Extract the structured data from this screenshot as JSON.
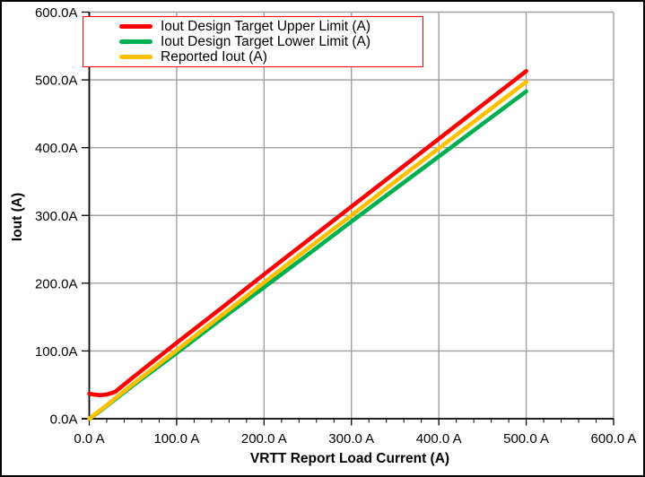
{
  "chart_data": {
    "type": "line",
    "title": "",
    "xlabel": "VRTT Report Load Current (A)",
    "ylabel": "Iout (A)",
    "xlim": [
      0,
      600
    ],
    "ylim": [
      0,
      600
    ],
    "grid": true,
    "gridline_color": "#A0A0A0",
    "axis_color": "#000000",
    "background_color": "#FFFFFF",
    "x_major_ticks": [
      0,
      100,
      200,
      300,
      400,
      500,
      600
    ],
    "x_tick_labels": [
      "0.0 A",
      "100.0 A",
      "200.0 A",
      "300.0 A",
      "400.0 A",
      "500.0 A",
      "600.0 A"
    ],
    "x_minor_tick_step": 20,
    "y_major_ticks": [
      0,
      100,
      200,
      300,
      400,
      500,
      600
    ],
    "y_tick_labels": [
      "0.0A",
      "100.0A",
      "200.0A",
      "300.0A",
      "400.0A",
      "500.0A",
      "600.0A"
    ],
    "legend_position": "top-left-inside",
    "legend_border_color": "#FF0000",
    "series": [
      {
        "name": "Iout Design Target Upper Limit (A)",
        "color": "#FF0000",
        "points": [
          [
            0,
            37
          ],
          [
            5,
            35.8
          ],
          [
            10,
            35
          ],
          [
            15,
            35
          ],
          [
            20,
            35.8
          ],
          [
            25,
            37.5
          ],
          [
            30,
            40
          ],
          [
            50,
            61
          ],
          [
            100,
            112
          ],
          [
            150,
            162
          ],
          [
            200,
            213
          ],
          [
            250,
            263
          ],
          [
            300,
            313
          ],
          [
            350,
            363
          ],
          [
            400,
            413
          ],
          [
            450,
            463
          ],
          [
            500,
            513
          ]
        ]
      },
      {
        "name": "Iout Design Target Lower Limit (A)",
        "color": "#00B050",
        "points": [
          [
            0,
            0
          ],
          [
            10,
            9
          ],
          [
            20,
            19
          ],
          [
            50,
            49
          ],
          [
            100,
            97
          ],
          [
            150,
            146
          ],
          [
            200,
            194
          ],
          [
            250,
            242
          ],
          [
            300,
            291
          ],
          [
            350,
            339
          ],
          [
            400,
            387
          ],
          [
            450,
            435
          ],
          [
            500,
            483
          ]
        ]
      },
      {
        "name": "Reported Iout (A)",
        "color": "#FFC000",
        "points": [
          [
            0,
            0
          ],
          [
            10,
            10
          ],
          [
            20,
            20
          ],
          [
            50,
            51
          ],
          [
            100,
            101
          ],
          [
            150,
            151
          ],
          [
            200,
            201
          ],
          [
            250,
            251
          ],
          [
            300,
            300
          ],
          [
            350,
            350
          ],
          [
            400,
            399
          ],
          [
            450,
            448
          ],
          [
            500,
            497
          ]
        ]
      }
    ]
  }
}
